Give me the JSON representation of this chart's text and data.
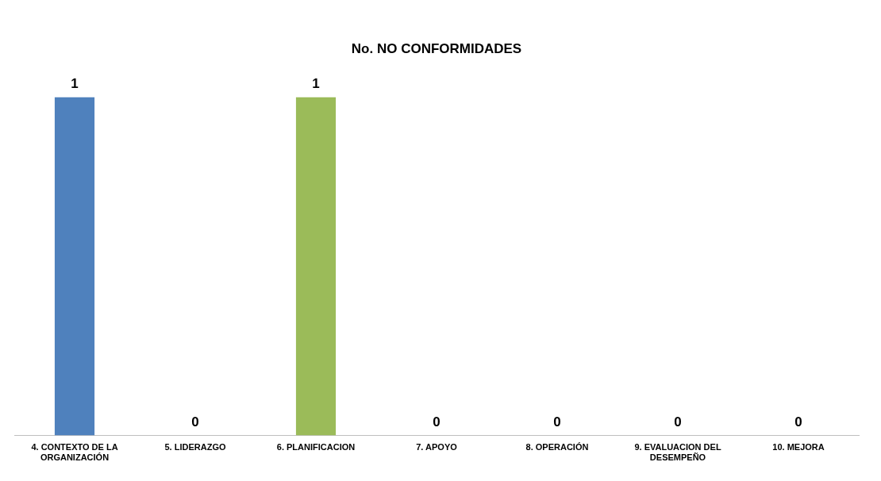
{
  "chart_data": {
    "type": "bar",
    "title": "No. NO CONFORMIDADES",
    "categories": [
      "4. CONTEXTO DE LA ORGANIZACIÓN",
      "5. LIDERAZGO",
      "6. PLANIFICACION",
      "7. APOYO",
      "8. OPERACIÓN",
      "9. EVALUACION DEL DESEMPEÑO",
      "10. MEJORA"
    ],
    "values": [
      1,
      0,
      1,
      0,
      0,
      0,
      0
    ],
    "colors": [
      "#4f81bd",
      "#c0504d",
      "#9bbb59",
      "#8064a2",
      "#4bacc6",
      "#f79646",
      "#2c4d75"
    ],
    "data_labels": true,
    "grid": false,
    "legend": false
  }
}
